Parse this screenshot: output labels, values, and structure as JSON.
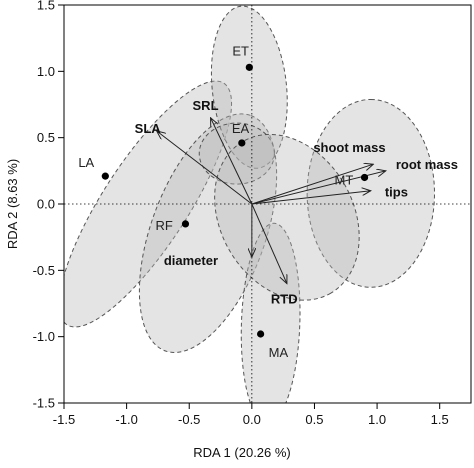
{
  "chart_data": {
    "type": "scatter",
    "title": "",
    "xlabel": "RDA 1 (20.26 %)",
    "ylabel": "RDA 2 (8.63 %)",
    "xlim": [
      -1.5,
      1.75
    ],
    "ylim": [
      -1.5,
      1.5
    ],
    "x_ticks": [
      "-1.5",
      "-1.0",
      "-0.5",
      "0.0",
      "0.5",
      "1.0",
      "1.5"
    ],
    "x_tick_values": [
      -1.5,
      -1.0,
      -0.5,
      0.0,
      0.5,
      1.0,
      1.5
    ],
    "y_ticks": [
      "1.5",
      "1.0",
      "0.5",
      "0.0",
      "-0.5",
      "-1.0",
      "-1.5"
    ],
    "y_tick_values": [
      1.5,
      1.0,
      0.5,
      0.0,
      -0.5,
      -1.0,
      -1.5
    ],
    "grid": false,
    "reference_lines": {
      "x": 0,
      "y": 0,
      "style": "dotted"
    },
    "sites": [
      {
        "label": "ET",
        "x": -0.02,
        "y": 1.03
      },
      {
        "label": "EA",
        "x": -0.08,
        "y": 0.46
      },
      {
        "label": "LA",
        "x": -1.17,
        "y": 0.21
      },
      {
        "label": "RF",
        "x": -0.53,
        "y": -0.15
      },
      {
        "label": "MT",
        "x": 0.9,
        "y": 0.2
      },
      {
        "label": "MA",
        "x": 0.07,
        "y": -0.98
      }
    ],
    "vectors": [
      {
        "label": "SLA",
        "x": -0.76,
        "y": 0.55
      },
      {
        "label": "SRL",
        "x": -0.33,
        "y": 0.65
      },
      {
        "label": "shoot mass",
        "x": 0.97,
        "y": 0.3
      },
      {
        "label": "root mass",
        "x": 1.07,
        "y": 0.25
      },
      {
        "label": "tips",
        "x": 0.95,
        "y": 0.1
      },
      {
        "label": "diameter",
        "x": 0.0,
        "y": -0.4
      },
      {
        "label": "RTD",
        "x": 0.28,
        "y": -0.6
      }
    ],
    "ellipses": [
      {
        "cx": -0.85,
        "cy": 0.0,
        "rx": 1.15,
        "ry": 0.32,
        "angle_deg": -57
      },
      {
        "cx": -0.35,
        "cy": -0.22,
        "rx": 1.0,
        "ry": 0.43,
        "angle_deg": -70
      },
      {
        "cx": -0.02,
        "cy": 0.88,
        "rx": 0.65,
        "ry": 0.28,
        "angle_deg": 84
      },
      {
        "cx": -0.12,
        "cy": 0.38,
        "rx": 0.3,
        "ry": 0.23,
        "angle_deg": 0
      },
      {
        "cx": 0.95,
        "cy": 0.08,
        "rx": 0.75,
        "ry": 0.48,
        "angle_deg": -90
      },
      {
        "cx": 0.15,
        "cy": -0.9,
        "rx": 0.8,
        "ry": 0.22,
        "angle_deg": 92
      },
      {
        "cx": 0.28,
        "cy": -0.1,
        "rx": 0.7,
        "ry": 0.5,
        "angle_deg": 60
      }
    ],
    "colors": {
      "ellipse_fill": "#b8b8b8",
      "ellipse_stroke": "#555555",
      "arrow": "#222222",
      "point": "#000000"
    }
  }
}
